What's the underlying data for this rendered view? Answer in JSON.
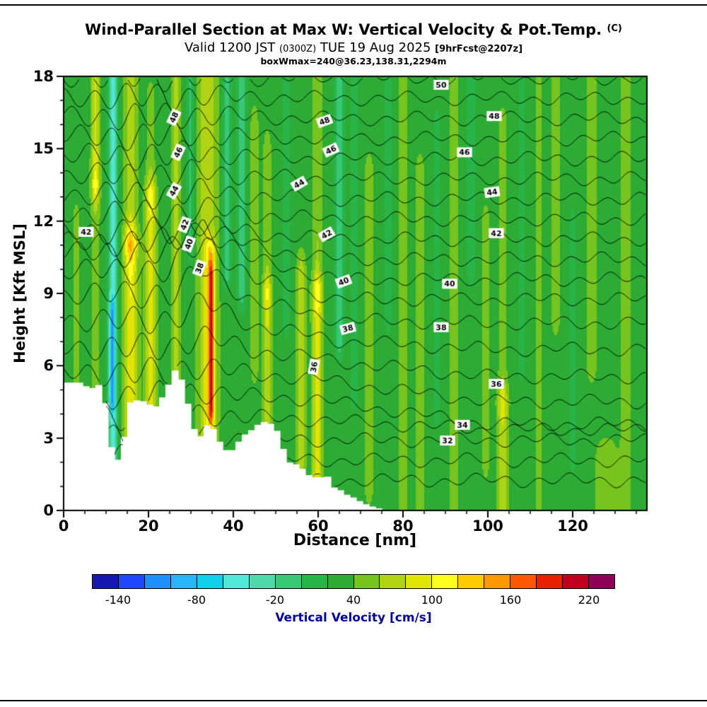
{
  "title": {
    "main": "Wind-Parallel Section at Max W: Vertical Velocity & Pot.Temp.",
    "unit_suffix": "(C)"
  },
  "subtitle": {
    "prefix": "Valid 1200 JST ",
    "z_time": "(0300Z)",
    "date": " TUE 19 Aug 2025 ",
    "fcst": "[9hrFcst@2207z]"
  },
  "info_line": "boxWmax=240@36.23,138.31,2294m",
  "chart_data": {
    "type": "heatmap",
    "title": "Wind-Parallel Section at Max W: Vertical Velocity & Pot.Temp. (C)",
    "subtitle": "Valid 1200 JST (0300Z) TUE 19 Aug 2025 [9hrFcst@2207z]",
    "annotation": "boxWmax=240@36.23,138.31,2294m",
    "xlabel": "Distance [nm]",
    "ylabel": "Height [Kft MSL]",
    "xlim": [
      0,
      137.5
    ],
    "ylim": [
      0,
      18
    ],
    "xticks": [
      0,
      20,
      40,
      60,
      80,
      100,
      120
    ],
    "yticks": [
      0,
      3,
      6,
      9,
      12,
      15,
      18
    ],
    "x_minor_step": 5,
    "y_minor_step": 1,
    "fill_field": {
      "units": "cm/s",
      "base_value": 30,
      "levels_min": -160,
      "levels_step": 20,
      "colors": [
        "#1818b0",
        "#2048ff",
        "#2090ff",
        "#28b4ff",
        "#10d0e8",
        "#50e8d8",
        "#50d8a8",
        "#38c878",
        "#28b448",
        "#2cac34",
        "#78c41e",
        "#b0d414",
        "#e0e400",
        "#ffff20",
        "#ffcc00",
        "#ff9800",
        "#ff5800",
        "#e82000",
        "#c00020",
        "#8c0058"
      ],
      "streaks": [
        [
          3.0,
          0.9,
          5.3,
          12.0,
          20
        ],
        [
          7.5,
          1.0,
          13.5,
          18.5,
          55
        ],
        [
          7.5,
          1.0,
          5.3,
          13.5,
          25
        ],
        [
          11.6,
          1.1,
          2.0,
          17.8,
          -75
        ],
        [
          11.4,
          0.55,
          4.8,
          8.0,
          -70
        ],
        [
          15.8,
          1.6,
          2.0,
          11.0,
          70
        ],
        [
          15.8,
          1.4,
          11.0,
          18.5,
          45
        ],
        [
          20.5,
          1.3,
          2.0,
          13.0,
          60
        ],
        [
          20.5,
          1.0,
          13.0,
          17.0,
          25
        ],
        [
          26.5,
          1.1,
          5.5,
          18.5,
          38
        ],
        [
          30.0,
          0.9,
          11.0,
          18.0,
          -35
        ],
        [
          33.8,
          2.4,
          3.2,
          18.5,
          45
        ],
        [
          34.6,
          1.1,
          4.0,
          10.5,
          65
        ],
        [
          34.8,
          0.62,
          4.4,
          9.6,
          80
        ],
        [
          38.5,
          1.0,
          10.0,
          18.5,
          -45
        ],
        [
          42.0,
          1.0,
          9.0,
          18.5,
          -40
        ],
        [
          45.0,
          0.9,
          6.0,
          16.0,
          25
        ],
        [
          48.0,
          1.0,
          3.8,
          9.0,
          50
        ],
        [
          48.0,
          0.9,
          9.0,
          15.0,
          25
        ],
        [
          52.5,
          0.8,
          8.0,
          18.0,
          -30
        ],
        [
          56.0,
          1.0,
          2.0,
          10.0,
          40
        ],
        [
          59.8,
          1.2,
          1.5,
          9.0,
          60
        ],
        [
          59.8,
          1.0,
          9.0,
          18.0,
          30
        ],
        [
          65.0,
          1.0,
          7.0,
          18.5,
          -42
        ],
        [
          68.5,
          0.9,
          5.0,
          18.0,
          -30
        ],
        [
          72.0,
          1.0,
          1.0,
          14.0,
          25
        ],
        [
          76.5,
          0.8,
          8.0,
          18.0,
          -22
        ],
        [
          80.0,
          1.1,
          0.0,
          18.5,
          22
        ],
        [
          84.0,
          1.0,
          0.0,
          14.0,
          25
        ],
        [
          88.0,
          0.9,
          4.0,
          16.0,
          -18
        ],
        [
          92.0,
          1.1,
          0.0,
          18.0,
          22
        ],
        [
          96.0,
          0.9,
          10.0,
          18.0,
          -25
        ],
        [
          99.5,
          0.9,
          2.0,
          12.0,
          20
        ],
        [
          103.5,
          1.3,
          0.3,
          4.5,
          45
        ],
        [
          103.5,
          1.0,
          4.5,
          16.0,
          22
        ],
        [
          108.0,
          1.0,
          6.0,
          18.0,
          -18
        ],
        [
          112.0,
          1.0,
          0.0,
          18.0,
          18
        ],
        [
          116.0,
          1.0,
          8.0,
          18.5,
          24
        ],
        [
          120.0,
          0.9,
          2.0,
          12.0,
          -15
        ],
        [
          124.5,
          1.2,
          6.0,
          18.5,
          22
        ],
        [
          128.0,
          2.5,
          0.0,
          2.2,
          28
        ],
        [
          132.5,
          1.2,
          0.0,
          18.5,
          26
        ]
      ]
    },
    "terrain_profile": [
      [
        0,
        5.3
      ],
      [
        5,
        5.3
      ],
      [
        6,
        4.7
      ],
      [
        7,
        5.2
      ],
      [
        9,
        5.2
      ],
      [
        10,
        4.2
      ],
      [
        11,
        2.8
      ],
      [
        12,
        2.1
      ],
      [
        13,
        2.1
      ],
      [
        14,
        2.6
      ],
      [
        15,
        4.4
      ],
      [
        16,
        4.5
      ],
      [
        18,
        4.6
      ],
      [
        20,
        4.4
      ],
      [
        22,
        4.3
      ],
      [
        23,
        4.6
      ],
      [
        25,
        5.3
      ],
      [
        26,
        5.8
      ],
      [
        27,
        5.8
      ],
      [
        28,
        5.3
      ],
      [
        29,
        4.6
      ],
      [
        30,
        3.9
      ],
      [
        31,
        3.2
      ],
      [
        32,
        3.0
      ],
      [
        33,
        3.3
      ],
      [
        34,
        3.6
      ],
      [
        35,
        3.4
      ],
      [
        36,
        3.3
      ],
      [
        37,
        2.7
      ],
      [
        38,
        2.5
      ],
      [
        40,
        2.5
      ],
      [
        41,
        2.8
      ],
      [
        43,
        3.2
      ],
      [
        45,
        3.4
      ],
      [
        46,
        3.6
      ],
      [
        48,
        3.7
      ],
      [
        50,
        3.4
      ],
      [
        51,
        3.0
      ],
      [
        52,
        2.4
      ],
      [
        53,
        2.0
      ],
      [
        55,
        1.9
      ],
      [
        56,
        1.8
      ],
      [
        57,
        1.5
      ],
      [
        59,
        1.4
      ],
      [
        60,
        1.3
      ],
      [
        61,
        1.4
      ],
      [
        62,
        1.5
      ],
      [
        63,
        1.1
      ],
      [
        64,
        0.9
      ],
      [
        66,
        0.8
      ],
      [
        67,
        0.6
      ],
      [
        69,
        0.5
      ],
      [
        70,
        0.35
      ],
      [
        72,
        0.2
      ],
      [
        74,
        0.1
      ],
      [
        76,
        0
      ]
    ],
    "contours": {
      "variable": "Potential Temperature",
      "units": "C",
      "interval": 1,
      "levels": [
        30,
        31,
        32,
        33,
        34,
        35,
        36,
        37,
        38,
        39,
        40,
        41,
        42,
        43,
        44,
        45,
        46,
        47,
        48,
        49,
        50
      ],
      "labeled_levels": [
        32,
        34,
        36,
        38,
        40,
        42,
        44,
        46,
        48,
        50
      ],
      "labels": [
        [
          89,
          17.65,
          "50",
          0
        ],
        [
          26,
          16.3,
          "48",
          -65
        ],
        [
          61.5,
          16.15,
          "48",
          -20
        ],
        [
          101.5,
          16.35,
          "48",
          0
        ],
        [
          27,
          14.85,
          "46",
          -65
        ],
        [
          63,
          14.95,
          "46",
          -25
        ],
        [
          94.5,
          14.85,
          "46",
          0
        ],
        [
          26,
          13.25,
          "44",
          -60
        ],
        [
          55.5,
          13.55,
          "44",
          -30
        ],
        [
          101,
          13.2,
          "44",
          -8
        ],
        [
          5.3,
          11.55,
          "42",
          0
        ],
        [
          28.5,
          11.85,
          "42",
          -70
        ],
        [
          62,
          11.45,
          "42",
          -30
        ],
        [
          102,
          11.5,
          "42",
          0
        ],
        [
          29.5,
          11.05,
          "40",
          -70
        ],
        [
          66,
          9.5,
          "40",
          -20
        ],
        [
          91,
          9.4,
          "40",
          0
        ],
        [
          32,
          10.05,
          "38",
          -70
        ],
        [
          67,
          7.55,
          "38",
          -15
        ],
        [
          89,
          7.6,
          "38",
          0
        ],
        [
          59,
          5.95,
          "36",
          -80
        ],
        [
          102,
          5.25,
          "36",
          0
        ],
        [
          94,
          3.55,
          "34",
          0
        ],
        [
          90.5,
          2.9,
          "32",
          0
        ]
      ],
      "model": {
        "theta0": 28.5,
        "dthetady": 1.2,
        "crest_env": [
          [
            0,
            0.5
          ],
          [
            25,
            0.5
          ],
          [
            33,
            1.0
          ],
          [
            45,
            0.35
          ],
          [
            65,
            0
          ],
          [
            137.5,
            0
          ]
        ],
        "right_env": [
          [
            0,
            0
          ],
          [
            60,
            0
          ],
          [
            100,
            1
          ],
          [
            137.5,
            1
          ]
        ],
        "lift": {
          "30": 0.1,
          "31": 0.15,
          "32": 0.2,
          "33": 0.25,
          "34": 0.35,
          "35": 0.6,
          "36": 1.0,
          "37": 1.6,
          "38": 2.1,
          "39": 2.4,
          "40": 2.2,
          "41": 1.4,
          "42": 0.65,
          "43": 0.45,
          "44": 0.35,
          "45": 0.3,
          "46": 0.27,
          "47": 0.2,
          "48": 0.16,
          "49": 0.12,
          "50": 0.1
        },
        "drop": {
          "30": 0,
          "31": 0,
          "32": 0,
          "33": -0.4,
          "34": -1.0,
          "35": -0.9,
          "36": -0.7,
          "37": -0.4,
          "38": -0.15,
          "39": 0,
          "40": 0,
          "41": 0,
          "42": 0,
          "43": 0,
          "44": 0,
          "45": 0,
          "46": 0,
          "47": 0,
          "48": 0,
          "49": 0,
          "50": 0
        }
      }
    },
    "colorbar": {
      "label": "Vertical Velocity [cm/s]",
      "label_color": "#000099",
      "tick_labels": [
        "-140",
        "-80",
        "-20",
        "40",
        "100",
        "160",
        "220"
      ],
      "tick_positions": [
        1,
        4,
        7,
        10,
        13,
        16,
        19
      ]
    }
  }
}
